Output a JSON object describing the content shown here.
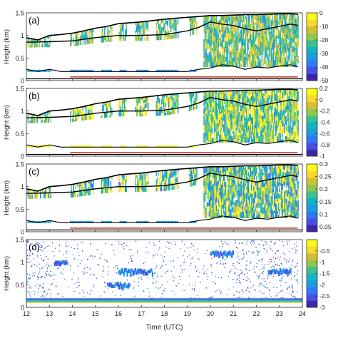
{
  "figure": {
    "xlabel": "Time (UTC)",
    "ylabel": "Height (km)",
    "x_ticks": [
      "12",
      "13",
      "14",
      "15",
      "16",
      "17",
      "18",
      "19",
      "20",
      "21",
      "22",
      "23",
      "24"
    ],
    "y_ticks": [
      "0",
      "0.5",
      "1",
      "1.5"
    ],
    "colormap": [
      "#3e26a8",
      "#4750e6",
      "#2f79f8",
      "#1a9ce0",
      "#13b3c3",
      "#3cc08f",
      "#90c84a",
      "#d3bf34",
      "#fbd92d",
      "#f9fb15"
    ],
    "line_color": "#000000",
    "marker_line_color": "#c0392b"
  },
  "chart_data": [
    {
      "panel_label": "(a)",
      "type": "heatmap",
      "xlim": [
        12,
        24
      ],
      "ylim": [
        0,
        1.5
      ],
      "colorbar": {
        "range": [
          -50,
          0
        ],
        "ticks": [
          "0",
          "-10",
          "-20",
          "-30",
          "-40",
          "-50"
        ]
      },
      "cloud_top_line": {
        "x": [
          12,
          12.5,
          13,
          13.5,
          14,
          14.5,
          15,
          15.5,
          16,
          16.5,
          17,
          17.5,
          18,
          18.5,
          19,
          19.5,
          20,
          20.5,
          21,
          21.5,
          22,
          22.5,
          23,
          23.5,
          23.8
        ],
        "y": [
          0.95,
          0.9,
          1.0,
          1.02,
          1.05,
          1.1,
          1.16,
          1.2,
          1.26,
          1.28,
          1.3,
          1.33,
          1.36,
          1.38,
          1.4,
          1.42,
          1.44,
          1.44,
          1.45,
          1.46,
          1.46,
          1.47,
          1.48,
          1.48,
          1.47
        ]
      },
      "cloud_base_line": {
        "x": [
          12,
          13,
          14,
          15,
          16,
          17,
          18,
          19,
          19.5,
          20,
          20.5,
          21,
          21.5,
          22,
          22.5,
          23,
          23.5,
          23.8
        ],
        "y": [
          0.85,
          0.86,
          0.88,
          0.95,
          1.0,
          1.0,
          1.02,
          1.1,
          1.18,
          1.3,
          1.25,
          1.22,
          1.15,
          1.1,
          1.15,
          1.2,
          1.25,
          1.22
        ]
      },
      "lower_line": {
        "x": [
          12,
          12.5,
          13,
          13.5,
          14,
          15,
          16,
          17,
          18,
          19,
          19.5,
          20,
          20.5,
          21,
          21.5,
          22,
          22.5,
          23,
          23.5,
          23.8
        ],
        "y": [
          0.25,
          0.2,
          0.25,
          0.2,
          0.2,
          0.2,
          0.2,
          0.2,
          0.2,
          0.2,
          0.25,
          0.28,
          0.35,
          0.32,
          0.25,
          0.3,
          0.28,
          0.32,
          0.35,
          0.3
        ]
      },
      "surface_line_y": 0.04,
      "precip_marker": {
        "x": [
          13.9,
          23.8
        ],
        "y": 0.08
      }
    },
    {
      "panel_label": "(b)",
      "type": "heatmap",
      "xlim": [
        12,
        24
      ],
      "ylim": [
        0,
        1.5
      ],
      "colorbar": {
        "range": [
          -1,
          0.2
        ],
        "ticks": [
          "0.2",
          "0",
          "-0.2",
          "-0.4",
          "-0.6",
          "-0.8",
          "-1"
        ]
      },
      "cloud_top_line": {
        "x": [
          12,
          12.5,
          13,
          13.5,
          14,
          14.5,
          15,
          15.5,
          16,
          16.5,
          17,
          17.5,
          18,
          18.5,
          19,
          19.5,
          20,
          20.5,
          21,
          21.5,
          22,
          22.5,
          23,
          23.5,
          23.8
        ],
        "y": [
          0.95,
          0.9,
          1.0,
          1.02,
          1.05,
          1.1,
          1.16,
          1.2,
          1.26,
          1.28,
          1.3,
          1.33,
          1.36,
          1.38,
          1.4,
          1.42,
          1.44,
          1.44,
          1.45,
          1.46,
          1.46,
          1.47,
          1.48,
          1.48,
          1.47
        ]
      },
      "cloud_base_line": {
        "x": [
          12,
          13,
          14,
          15,
          16,
          17,
          18,
          19,
          19.5,
          20,
          20.5,
          21,
          21.5,
          22,
          22.5,
          23,
          23.5,
          23.8
        ],
        "y": [
          0.85,
          0.86,
          0.88,
          0.95,
          1.0,
          1.0,
          1.02,
          1.1,
          1.18,
          1.3,
          1.25,
          1.22,
          1.15,
          1.1,
          1.15,
          1.2,
          1.25,
          1.22
        ]
      },
      "lower_line": {
        "x": [
          12,
          12.5,
          13,
          13.5,
          14,
          15,
          16,
          17,
          18,
          19,
          19.5,
          20,
          20.5,
          21,
          21.5,
          22,
          22.5,
          23,
          23.5,
          23.8
        ],
        "y": [
          0.25,
          0.2,
          0.25,
          0.2,
          0.2,
          0.2,
          0.2,
          0.2,
          0.2,
          0.2,
          0.25,
          0.28,
          0.35,
          0.32,
          0.25,
          0.3,
          0.28,
          0.32,
          0.35,
          0.3
        ]
      },
      "surface_line_y": 0.04,
      "precip_marker": {
        "x": [
          13.9,
          23.8
        ],
        "y": 0.08
      }
    },
    {
      "panel_label": "(c)",
      "type": "heatmap",
      "xlim": [
        12,
        24
      ],
      "ylim": [
        0,
        1.5
      ],
      "colorbar": {
        "range": [
          0.03,
          0.3
        ],
        "ticks": [
          "0.3",
          "0.25",
          "0.2",
          "0.15",
          "0.1",
          "0.05"
        ]
      },
      "cloud_top_line": {
        "x": [
          12,
          12.5,
          13,
          13.5,
          14,
          14.5,
          15,
          15.5,
          16,
          16.5,
          17,
          17.5,
          18,
          18.5,
          19,
          19.5,
          20,
          20.5,
          21,
          21.5,
          22,
          22.5,
          23,
          23.5,
          23.8
        ],
        "y": [
          0.95,
          0.9,
          1.0,
          1.02,
          1.05,
          1.1,
          1.16,
          1.2,
          1.26,
          1.28,
          1.3,
          1.33,
          1.36,
          1.38,
          1.4,
          1.42,
          1.44,
          1.44,
          1.45,
          1.46,
          1.46,
          1.47,
          1.48,
          1.48,
          1.47
        ]
      },
      "cloud_base_line": {
        "x": [
          12,
          13,
          14,
          15,
          16,
          17,
          18,
          19,
          19.5,
          20,
          20.5,
          21,
          21.5,
          22,
          22.5,
          23,
          23.5,
          23.8
        ],
        "y": [
          0.85,
          0.86,
          0.88,
          0.95,
          1.0,
          1.0,
          1.02,
          1.1,
          1.18,
          1.3,
          1.25,
          1.22,
          1.15,
          1.1,
          1.15,
          1.2,
          1.25,
          1.22
        ]
      },
      "lower_line": {
        "x": [
          12,
          12.5,
          13,
          13.5,
          14,
          15,
          16,
          17,
          18,
          19,
          19.5,
          20,
          20.5,
          21,
          21.5,
          22,
          22.5,
          23,
          23.5,
          23.8
        ],
        "y": [
          0.25,
          0.2,
          0.25,
          0.2,
          0.2,
          0.2,
          0.2,
          0.2,
          0.2,
          0.2,
          0.25,
          0.28,
          0.35,
          0.32,
          0.25,
          0.3,
          0.28,
          0.32,
          0.35,
          0.3
        ]
      },
      "surface_line_y": 0.04,
      "precip_marker": {
        "x": [
          13.9,
          23.8
        ],
        "y": 0.08
      }
    },
    {
      "panel_label": "(d)",
      "type": "heatmap",
      "xlim": [
        12,
        24
      ],
      "ylim": [
        0,
        1.5
      ],
      "colorbar": {
        "range": [
          -3,
          0
        ],
        "ticks": [
          "-0.5",
          "-1",
          "-1.5",
          "-2",
          "-2.5",
          "-3"
        ]
      },
      "features": {
        "surface_band": {
          "y_range": [
            0.1,
            0.2
          ]
        },
        "sparse_echo_region": {
          "x": [
            12,
            23.8
          ]
        },
        "cloud_layer_1": {
          "x": [
            13.2,
            13.8
          ],
          "y": 1.0
        },
        "cloud_layer_2": {
          "x": [
            15.5,
            16.5
          ],
          "y": 0.5
        },
        "cloud_layer_3": {
          "x": [
            16,
            17.5
          ],
          "y": 0.8
        },
        "cloud_layer_4": {
          "x": [
            20,
            21
          ],
          "y": 1.2
        },
        "cloud_layer_5": {
          "x": [
            22.5,
            23.5
          ],
          "y": 0.8
        }
      }
    }
  ]
}
